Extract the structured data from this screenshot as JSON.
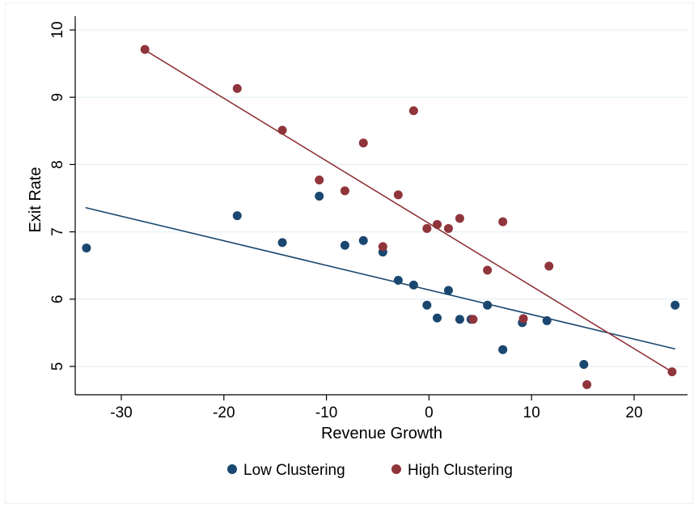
{
  "chart_data": {
    "type": "scatter",
    "title": "",
    "xlabel": "Revenue Growth",
    "ylabel": "Exit Rate",
    "xlim": [
      -35,
      25
    ],
    "ylim": [
      4.6,
      10.2
    ],
    "xticks": [
      -30,
      -20,
      -10,
      0,
      10,
      20
    ],
    "yticks": [
      5,
      6,
      7,
      8,
      9,
      10
    ],
    "xtick_labels": [
      "-30",
      "-20",
      "-10",
      "0",
      "10",
      "20"
    ],
    "ytick_labels": [
      "5",
      "6",
      "7",
      "8",
      "9",
      "10"
    ],
    "grid": true,
    "legend_position": "bottom",
    "series": [
      {
        "name": "Low Clustering",
        "color": "#1a476f",
        "points": [
          [
            -33.4,
            6.76
          ],
          [
            -18.7,
            7.24
          ],
          [
            -14.3,
            6.84
          ],
          [
            -10.7,
            7.53
          ],
          [
            -8.2,
            6.8
          ],
          [
            -6.4,
            6.87
          ],
          [
            -4.5,
            6.7
          ],
          [
            -3.0,
            6.28
          ],
          [
            -1.5,
            6.21
          ],
          [
            -0.2,
            5.91
          ],
          [
            0.8,
            5.72
          ],
          [
            1.9,
            6.13
          ],
          [
            3.0,
            5.7
          ],
          [
            4.1,
            5.7
          ],
          [
            5.7,
            5.91
          ],
          [
            7.2,
            5.25
          ],
          [
            9.1,
            5.65
          ],
          [
            11.5,
            5.68
          ],
          [
            15.1,
            5.03
          ],
          [
            24.0,
            5.91
          ]
        ],
        "fit": {
          "x": [
            -33.5,
            24.0
          ],
          "y": [
            7.36,
            5.26
          ]
        }
      },
      {
        "name": "High Clustering",
        "color": "#90353b",
        "points": [
          [
            -27.7,
            9.71
          ],
          [
            -18.7,
            9.13
          ],
          [
            -14.3,
            8.51
          ],
          [
            -10.7,
            7.77
          ],
          [
            -8.2,
            7.61
          ],
          [
            -6.4,
            8.32
          ],
          [
            -4.5,
            6.78
          ],
          [
            -3.0,
            7.55
          ],
          [
            -1.5,
            8.8
          ],
          [
            -0.2,
            7.05
          ],
          [
            0.8,
            7.11
          ],
          [
            1.9,
            7.05
          ],
          [
            3.0,
            7.2
          ],
          [
            4.3,
            5.7
          ],
          [
            5.7,
            6.43
          ],
          [
            7.2,
            7.15
          ],
          [
            9.2,
            5.71
          ],
          [
            11.7,
            6.49
          ],
          [
            15.4,
            4.73
          ],
          [
            23.7,
            4.92
          ]
        ],
        "fit": {
          "x": [
            -27.7,
            23.7
          ],
          "y": [
            9.7,
            4.92
          ]
        }
      }
    ]
  }
}
